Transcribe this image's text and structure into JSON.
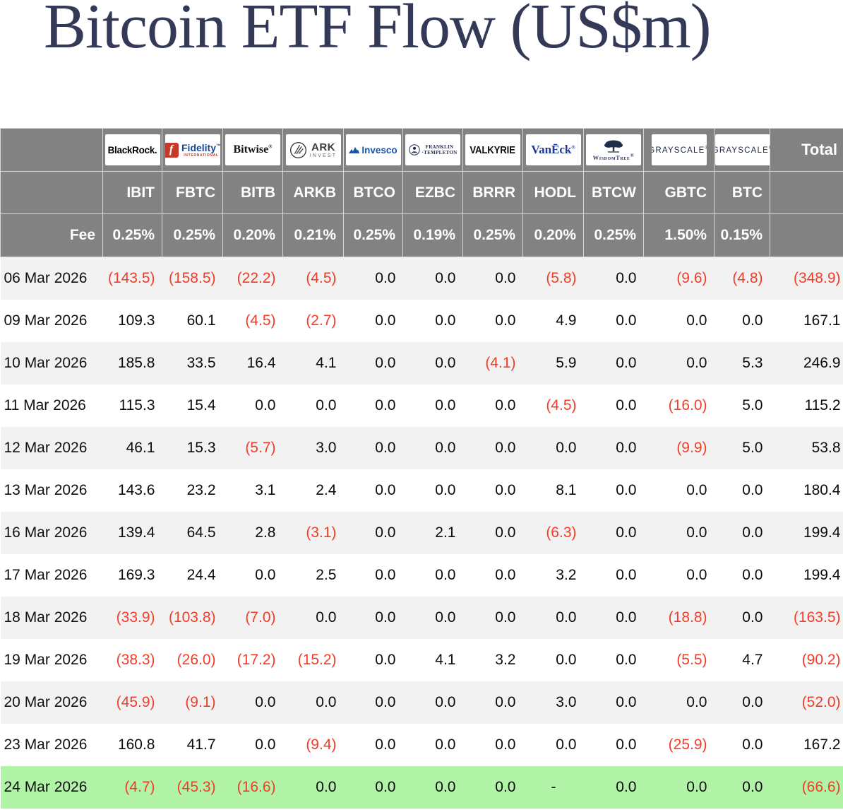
{
  "colors": {
    "header_bg": "#828282",
    "negative_red": "#f23c28",
    "stripe_gray": "#f2f2f2",
    "highlight_green": "#b2f4a7",
    "title_navy": "#333956"
  },
  "chart_data": {
    "type": "table",
    "title": "Bitcoin ETF Flow (US$m)",
    "fee_row_label": "Fee",
    "total_column_label": "Total",
    "negative_format": "parentheses, red",
    "columns": [
      {
        "provider": "BlackRock",
        "logo": "blackrock-logo",
        "ticker": "IBIT",
        "fee": "0.25%"
      },
      {
        "provider": "Fidelity International",
        "logo": "fidelity-logo",
        "ticker": "FBTC",
        "fee": "0.25%"
      },
      {
        "provider": "Bitwise",
        "logo": "bitwise-logo",
        "ticker": "BITB",
        "fee": "0.20%"
      },
      {
        "provider": "ARK Invest",
        "logo": "ark-invest-logo",
        "ticker": "ARKB",
        "fee": "0.21%"
      },
      {
        "provider": "Invesco",
        "logo": "invesco-logo",
        "ticker": "BTCO",
        "fee": "0.25%"
      },
      {
        "provider": "Franklin Templeton",
        "logo": "franklin-templeton-logo",
        "ticker": "EZBC",
        "fee": "0.19%"
      },
      {
        "provider": "Valkyrie",
        "logo": "valkyrie-logo",
        "ticker": "BRRR",
        "fee": "0.25%"
      },
      {
        "provider": "VanEck",
        "logo": "vaneck-logo",
        "ticker": "HODL",
        "fee": "0.20%"
      },
      {
        "provider": "WisdomTree",
        "logo": "wisdomtree-logo",
        "ticker": "BTCW",
        "fee": "0.25%"
      },
      {
        "provider": "Grayscale",
        "logo": "grayscale-logo",
        "ticker": "GBTC",
        "fee": "1.50%"
      },
      {
        "provider": "Grayscale",
        "logo": "grayscale-logo",
        "ticker": "BTC",
        "fee": "0.15%"
      }
    ],
    "rows": [
      {
        "date": "06 Mar 2026",
        "values": [
          "(143.5)",
          "(158.5)",
          "(22.2)",
          "(4.5)",
          "0.0",
          "0.0",
          "0.0",
          "(5.8)",
          "0.0",
          "(9.6)",
          "(4.8)"
        ],
        "total": "(348.9)",
        "highlight": false
      },
      {
        "date": "09 Mar 2026",
        "values": [
          "109.3",
          "60.1",
          "(4.5)",
          "(2.7)",
          "0.0",
          "0.0",
          "0.0",
          "4.9",
          "0.0",
          "0.0",
          "0.0"
        ],
        "total": "167.1",
        "highlight": false
      },
      {
        "date": "10 Mar 2026",
        "values": [
          "185.8",
          "33.5",
          "16.4",
          "4.1",
          "0.0",
          "0.0",
          "(4.1)",
          "5.9",
          "0.0",
          "0.0",
          "5.3"
        ],
        "total": "246.9",
        "highlight": false
      },
      {
        "date": "11 Mar 2026",
        "values": [
          "115.3",
          "15.4",
          "0.0",
          "0.0",
          "0.0",
          "0.0",
          "0.0",
          "(4.5)",
          "0.0",
          "(16.0)",
          "5.0"
        ],
        "total": "115.2",
        "highlight": false
      },
      {
        "date": "12 Mar 2026",
        "values": [
          "46.1",
          "15.3",
          "(5.7)",
          "3.0",
          "0.0",
          "0.0",
          "0.0",
          "0.0",
          "0.0",
          "(9.9)",
          "5.0"
        ],
        "total": "53.8",
        "highlight": false
      },
      {
        "date": "13 Mar 2026",
        "values": [
          "143.6",
          "23.2",
          "3.1",
          "2.4",
          "0.0",
          "0.0",
          "0.0",
          "8.1",
          "0.0",
          "0.0",
          "0.0"
        ],
        "total": "180.4",
        "highlight": false
      },
      {
        "date": "16 Mar 2026",
        "values": [
          "139.4",
          "64.5",
          "2.8",
          "(3.1)",
          "0.0",
          "2.1",
          "0.0",
          "(6.3)",
          "0.0",
          "0.0",
          "0.0"
        ],
        "total": "199.4",
        "highlight": false
      },
      {
        "date": "17 Mar 2026",
        "values": [
          "169.3",
          "24.4",
          "0.0",
          "2.5",
          "0.0",
          "0.0",
          "0.0",
          "3.2",
          "0.0",
          "0.0",
          "0.0"
        ],
        "total": "199.4",
        "highlight": false
      },
      {
        "date": "18 Mar 2026",
        "values": [
          "(33.9)",
          "(103.8)",
          "(7.0)",
          "0.0",
          "0.0",
          "0.0",
          "0.0",
          "0.0",
          "0.0",
          "(18.8)",
          "0.0"
        ],
        "total": "(163.5)",
        "highlight": false
      },
      {
        "date": "19 Mar 2026",
        "values": [
          "(38.3)",
          "(26.0)",
          "(17.2)",
          "(15.2)",
          "0.0",
          "4.1",
          "3.2",
          "0.0",
          "0.0",
          "(5.5)",
          "4.7"
        ],
        "total": "(90.2)",
        "highlight": false
      },
      {
        "date": "20 Mar 2026",
        "values": [
          "(45.9)",
          "(9.1)",
          "0.0",
          "0.0",
          "0.0",
          "0.0",
          "0.0",
          "3.0",
          "0.0",
          "0.0",
          "0.0"
        ],
        "total": "(52.0)",
        "highlight": false
      },
      {
        "date": "23 Mar 2026",
        "values": [
          "160.8",
          "41.7",
          "0.0",
          "(9.4)",
          "0.0",
          "0.0",
          "0.0",
          "0.0",
          "0.0",
          "(25.9)",
          "0.0"
        ],
        "total": "167.2",
        "highlight": false
      },
      {
        "date": "24 Mar 2026",
        "values": [
          "(4.7)",
          "(45.3)",
          "(16.6)",
          "0.0",
          "0.0",
          "0.0",
          "0.0",
          "-",
          "0.0",
          "0.0",
          "0.0"
        ],
        "total": "(66.6)",
        "highlight": true
      }
    ]
  }
}
